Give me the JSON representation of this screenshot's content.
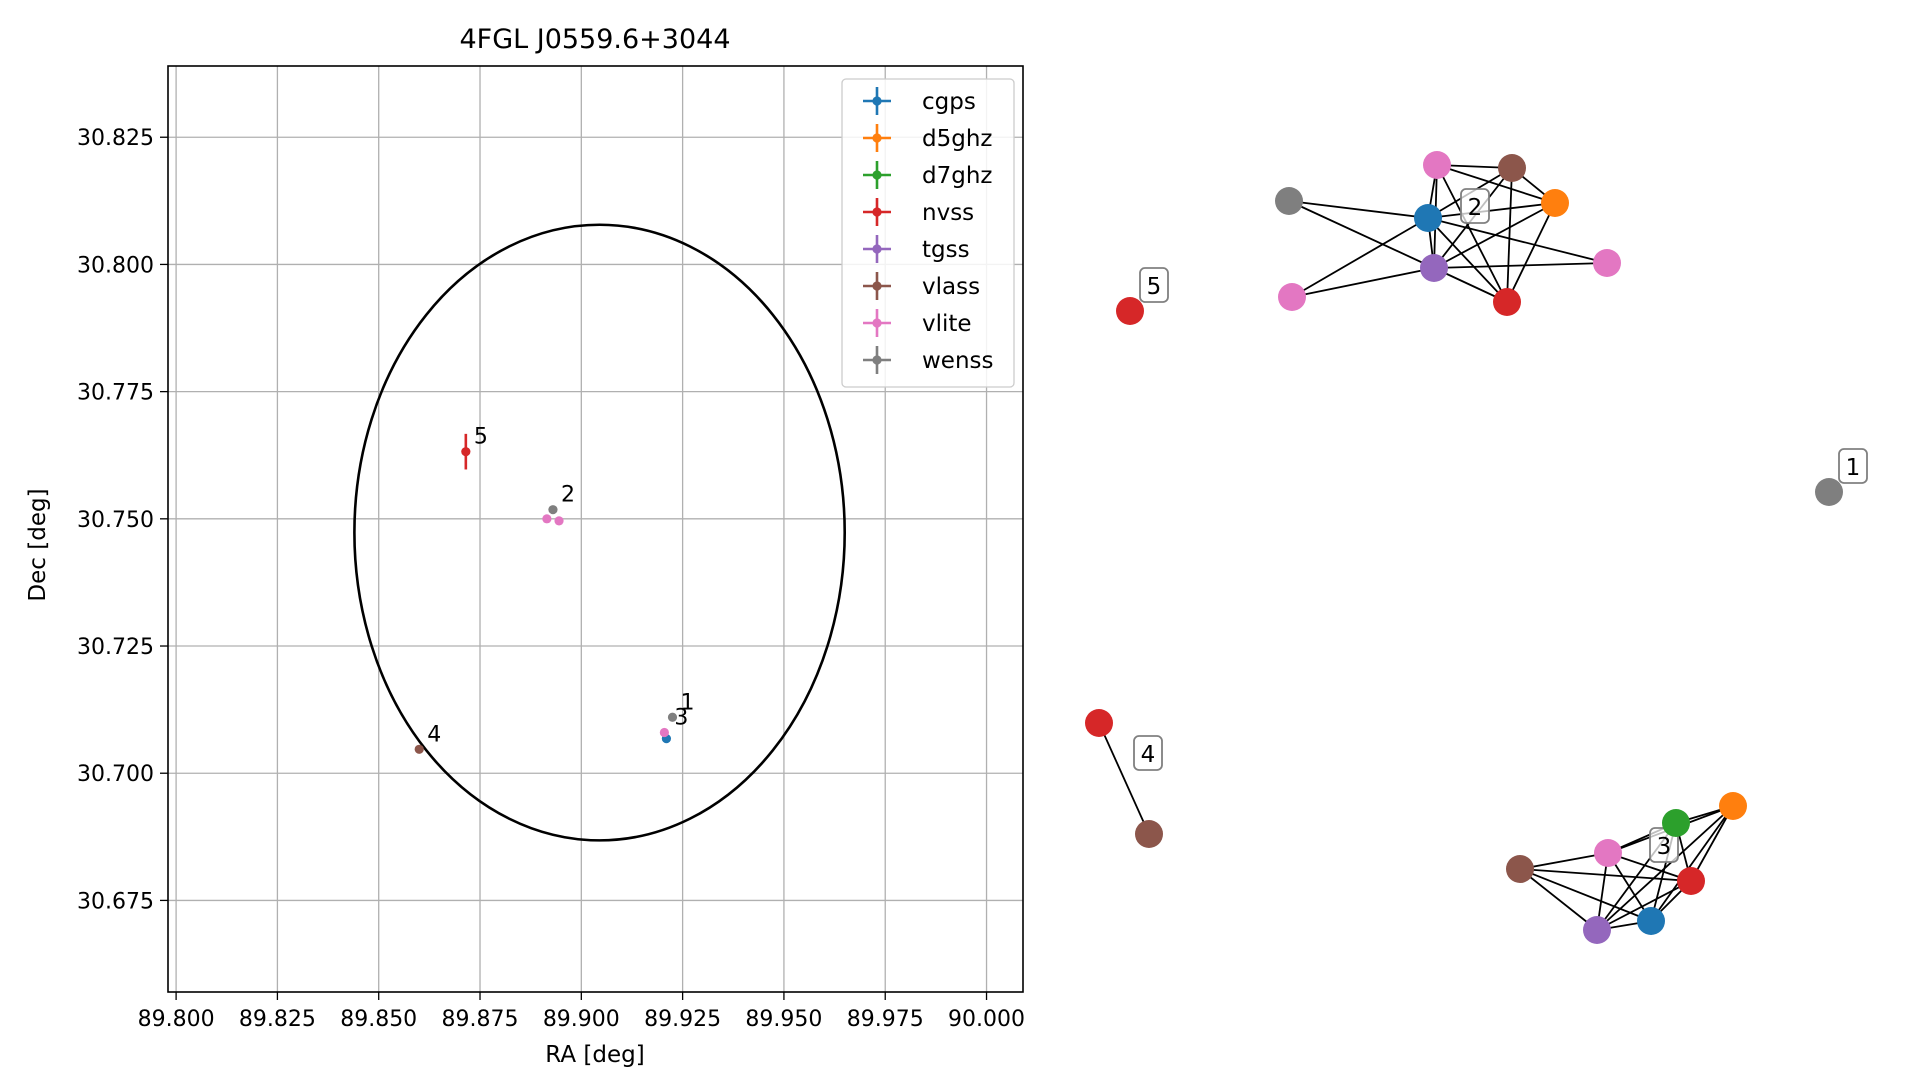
{
  "chart_data": [
    {
      "type": "scatter",
      "title": "4FGL J0559.6+3044",
      "xlabel": "RA [deg]",
      "ylabel": "Dec [deg]",
      "xlim": [
        89.798,
        90.009
      ],
      "ylim": [
        30.657,
        30.839
      ],
      "grid": true,
      "legend_position": "top-right",
      "xticks": [
        "89.800",
        "89.825",
        "89.850",
        "89.875",
        "89.900",
        "89.925",
        "89.950",
        "89.975",
        "90.000"
      ],
      "yticks": [
        "30.675",
        "30.700",
        "30.725",
        "30.750",
        "30.775",
        "30.800",
        "30.825"
      ],
      "ellipse": {
        "center": [
          89.9045,
          30.7473
        ],
        "ra_semi_axis": 0.0605,
        "dec_semi_axis": 0.0605
      },
      "series": [
        {
          "name": "cgps",
          "color": "#1f77b4",
          "points": [
            [
              89.921,
              30.7068
            ]
          ]
        },
        {
          "name": "d5ghz",
          "color": "#ff7f0e",
          "points": []
        },
        {
          "name": "d7ghz",
          "color": "#2ca02c",
          "points": []
        },
        {
          "name": "nvss",
          "color": "#d62728",
          "points": [
            [
              89.8715,
              30.7632,
              0.0035
            ]
          ]
        },
        {
          "name": "tgss",
          "color": "#9467bd",
          "points": []
        },
        {
          "name": "vlass",
          "color": "#8c564b",
          "points": [
            [
              89.86,
              30.7047
            ]
          ]
        },
        {
          "name": "vlite",
          "color": "#e377c2",
          "points": [
            [
              89.8915,
              30.75
            ],
            [
              89.8945,
              30.7496
            ],
            [
              89.9205,
              30.708
            ]
          ]
        },
        {
          "name": "wenss",
          "color": "#7f7f7f",
          "points": [
            [
              89.893,
              30.7518
            ],
            [
              89.9225,
              30.711
            ]
          ]
        }
      ],
      "annotations": [
        {
          "text": "1",
          "x": 89.9225,
          "y": 30.711
        },
        {
          "text": "2",
          "x": 89.893,
          "y": 30.7518
        },
        {
          "text": "3",
          "x": 89.921,
          "y": 30.708
        },
        {
          "text": "4",
          "x": 89.86,
          "y": 30.7047
        },
        {
          "text": "5",
          "x": 89.8715,
          "y": 30.7632
        }
      ]
    },
    {
      "type": "network",
      "clusters": [
        {
          "label": "2",
          "nodes": [
            {
              "id": "g1",
              "color": "#7f7f7f"
            },
            {
              "id": "p1",
              "color": "#e377c2"
            },
            {
              "id": "br",
              "color": "#8c564b"
            },
            {
              "id": "or",
              "color": "#ff7f0e"
            },
            {
              "id": "bl",
              "color": "#1f77b4"
            },
            {
              "id": "p2",
              "color": "#e377c2"
            },
            {
              "id": "pu",
              "color": "#9467bd"
            },
            {
              "id": "rd",
              "color": "#d62728"
            },
            {
              "id": "p3",
              "color": "#e377c2"
            }
          ],
          "edges": [
            [
              "g1",
              "bl"
            ],
            [
              "g1",
              "pu"
            ],
            [
              "p1",
              "br"
            ],
            [
              "p1",
              "bl"
            ],
            [
              "p1",
              "pu"
            ],
            [
              "p1",
              "rd"
            ],
            [
              "p1",
              "or"
            ],
            [
              "br",
              "or"
            ],
            [
              "br",
              "bl"
            ],
            [
              "br",
              "pu"
            ],
            [
              "br",
              "rd"
            ],
            [
              "or",
              "bl"
            ],
            [
              "or",
              "pu"
            ],
            [
              "or",
              "rd"
            ],
            [
              "bl",
              "pu"
            ],
            [
              "bl",
              "rd"
            ],
            [
              "bl",
              "p3"
            ],
            [
              "bl",
              "p2"
            ],
            [
              "pu",
              "p2"
            ],
            [
              "pu",
              "p3"
            ],
            [
              "pu",
              "rd"
            ]
          ]
        },
        {
          "label": "5",
          "nodes": [
            {
              "id": "n5",
              "color": "#d62728"
            }
          ],
          "edges": []
        },
        {
          "label": "1",
          "nodes": [
            {
              "id": "n1",
              "color": "#7f7f7f"
            }
          ],
          "edges": []
        },
        {
          "label": "4",
          "nodes": [
            {
              "id": "r4",
              "color": "#d62728"
            },
            {
              "id": "b4",
              "color": "#8c564b"
            }
          ],
          "edges": [
            [
              "r4",
              "b4"
            ]
          ]
        },
        {
          "label": "3",
          "nodes": [
            {
              "id": "gr",
              "color": "#2ca02c"
            },
            {
              "id": "or",
              "color": "#ff7f0e"
            },
            {
              "id": "pk",
              "color": "#e377c2"
            },
            {
              "id": "br",
              "color": "#8c564b"
            },
            {
              "id": "rd",
              "color": "#d62728"
            },
            {
              "id": "pu",
              "color": "#9467bd"
            },
            {
              "id": "bl",
              "color": "#1f77b4"
            }
          ],
          "edges": [
            [
              "gr",
              "pk"
            ],
            [
              "gr",
              "or"
            ],
            [
              "gr",
              "rd"
            ],
            [
              "gr",
              "pu"
            ],
            [
              "gr",
              "bl"
            ],
            [
              "or",
              "pk"
            ],
            [
              "or",
              "rd"
            ],
            [
              "or",
              "pu"
            ],
            [
              "or",
              "bl"
            ],
            [
              "pk",
              "br"
            ],
            [
              "pk",
              "rd"
            ],
            [
              "pk",
              "pu"
            ],
            [
              "pk",
              "bl"
            ],
            [
              "br",
              "rd"
            ],
            [
              "br",
              "pu"
            ],
            [
              "br",
              "bl"
            ],
            [
              "rd",
              "pu"
            ],
            [
              "rd",
              "bl"
            ],
            [
              "pu",
              "bl"
            ]
          ]
        }
      ]
    }
  ]
}
